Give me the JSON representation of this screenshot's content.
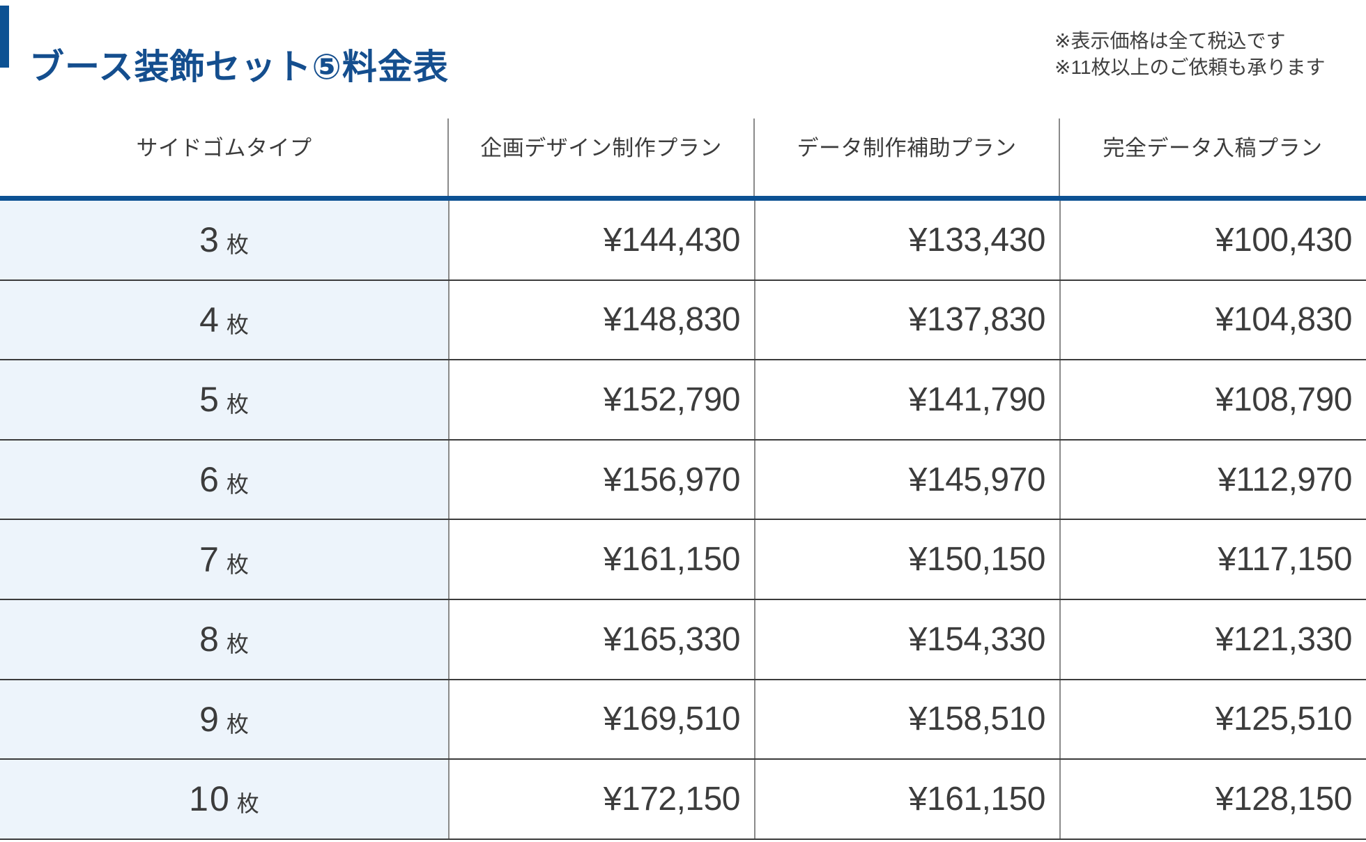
{
  "page": {
    "title": "ブース装飾セット⑤料金表",
    "notes": {
      "tax": "※表示価格は全て税込です",
      "more_sheets": "※11枚以上のご依頼も承ります"
    }
  },
  "colors": {
    "brand_blue": "#0c5193",
    "title_blue": "#144e8e",
    "qty_column_bg": "#edf4fb",
    "row_separator": "#3b3b3b",
    "column_separator": "#8a8a8a"
  },
  "table": {
    "columns": [
      "サイドゴムタイプ",
      "企画デザイン制作プラン",
      "データ制作補助プラン",
      "完全データ入稿プラン"
    ],
    "unit": "枚",
    "rows": [
      {
        "qty": "3",
        "plan_design": "¥144,430",
        "plan_data_assist": "¥133,430",
        "plan_full_data": "¥100,430"
      },
      {
        "qty": "4",
        "plan_design": "¥148,830",
        "plan_data_assist": "¥137,830",
        "plan_full_data": "¥104,830"
      },
      {
        "qty": "5",
        "plan_design": "¥152,790",
        "plan_data_assist": "¥141,790",
        "plan_full_data": "¥108,790"
      },
      {
        "qty": "6",
        "plan_design": "¥156,970",
        "plan_data_assist": "¥145,970",
        "plan_full_data": "¥112,970"
      },
      {
        "qty": "7",
        "plan_design": "¥161,150",
        "plan_data_assist": "¥150,150",
        "plan_full_data": "¥117,150"
      },
      {
        "qty": "8",
        "plan_design": "¥165,330",
        "plan_data_assist": "¥154,330",
        "plan_full_data": "¥121,330"
      },
      {
        "qty": "9",
        "plan_design": "¥169,510",
        "plan_data_assist": "¥158,510",
        "plan_full_data": "¥125,510"
      },
      {
        "qty": "10",
        "plan_design": "¥172,150",
        "plan_data_assist": "¥161,150",
        "plan_full_data": "¥128,150"
      }
    ]
  }
}
